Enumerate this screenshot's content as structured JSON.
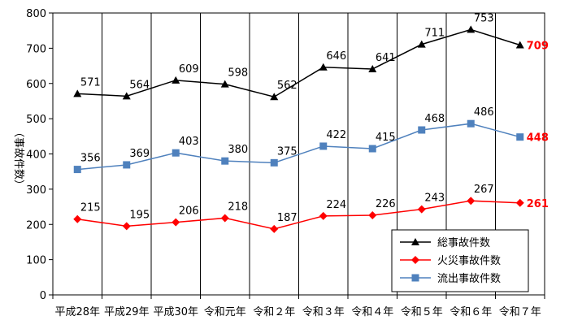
{
  "chart_data": {
    "type": "line",
    "title": "",
    "xlabel": "",
    "ylabel": "（事故件数）",
    "ylim": [
      0,
      800
    ],
    "yticks": [
      0,
      100,
      200,
      300,
      400,
      500,
      600,
      700,
      800
    ],
    "grid": "vertical",
    "legend_position": "bottom-right",
    "categories": [
      "平成28年",
      "平成29年",
      "平成30年",
      "令和元年",
      "令和２年",
      "令和３年",
      "令和４年",
      "令和５年",
      "令和６年",
      "令和７年"
    ],
    "series": [
      {
        "name": "総事故件数",
        "values": [
          571,
          564,
          609,
          598,
          562,
          646,
          641,
          711,
          753,
          709
        ],
        "color": "#000000",
        "marker": "triangle"
      },
      {
        "name": "火災事故件数",
        "values": [
          215,
          195,
          206,
          218,
          187,
          224,
          226,
          243,
          267,
          261
        ],
        "color": "#ff0000",
        "marker": "diamond"
      },
      {
        "name": "流出事故件数",
        "values": [
          356,
          369,
          403,
          380,
          375,
          422,
          415,
          468,
          486,
          448
        ],
        "color": "#4f81bd",
        "marker": "square"
      }
    ],
    "last_label_color": "#ff0000"
  }
}
